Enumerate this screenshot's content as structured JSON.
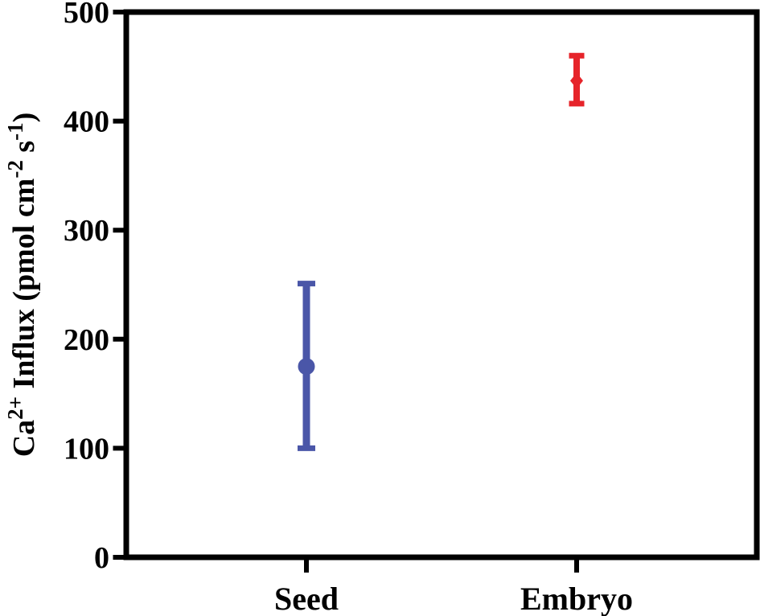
{
  "figure": {
    "background": "#FFFFFF",
    "frame_color": "#000000",
    "text_color": "#000000"
  },
  "chart_data": {
    "type": "scatter",
    "title": "",
    "xlabel": "",
    "ylabel": "Ca2+ Influx (pmol cm-2 s-1)",
    "ylabel_parts": [
      {
        "t": "Ca",
        "sup": false
      },
      {
        "t": "2+",
        "sup": true
      },
      {
        "t": " Influx (pmol cm",
        "sup": false
      },
      {
        "t": "-2",
        "sup": true
      },
      {
        "t": " s",
        "sup": false
      },
      {
        "t": "-1",
        "sup": true
      },
      {
        "t": ")",
        "sup": false
      }
    ],
    "categories": [
      "Seed",
      "Embryo"
    ],
    "series": [
      {
        "name": "Seed",
        "marker": "circle",
        "color": "#4A56A8",
        "value": 175,
        "error_low": 100,
        "error_high": 251
      },
      {
        "name": "Embryo",
        "marker": "diamond",
        "color": "#E6242A",
        "value": 437,
        "error_low": 416,
        "error_high": 460
      }
    ],
    "yticks": [
      0,
      100,
      200,
      300,
      400,
      500
    ],
    "ylim": [
      0,
      500
    ],
    "grid": false,
    "legend": "none"
  }
}
